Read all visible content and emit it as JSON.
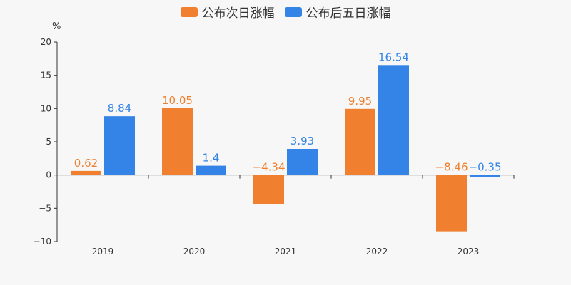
{
  "chart_data": {
    "type": "bar",
    "unit": "%",
    "categories": [
      "2019",
      "2020",
      "2021",
      "2022",
      "2023"
    ],
    "series": [
      {
        "name": "公布次日涨幅",
        "color": "#f08030",
        "values": [
          0.62,
          10.05,
          -4.34,
          9.95,
          -8.46
        ],
        "labels": [
          "0.62",
          "10.05",
          "−4.34",
          "9.95",
          "−8.46"
        ]
      },
      {
        "name": "公布后五日涨幅",
        "color": "#3384e6",
        "values": [
          8.84,
          1.4,
          3.93,
          16.54,
          -0.35
        ],
        "labels": [
          "8.84",
          "1.4",
          "3.93",
          "16.54",
          "−0.35"
        ]
      }
    ],
    "yticks": [
      20,
      15,
      10,
      5,
      0,
      -5,
      -10
    ],
    "ytick_labels": [
      "20",
      "15",
      "10",
      "5",
      "0",
      "−5",
      "−10"
    ],
    "ylim": [
      -10,
      20
    ],
    "legend_position": "top-center",
    "grid": false
  }
}
